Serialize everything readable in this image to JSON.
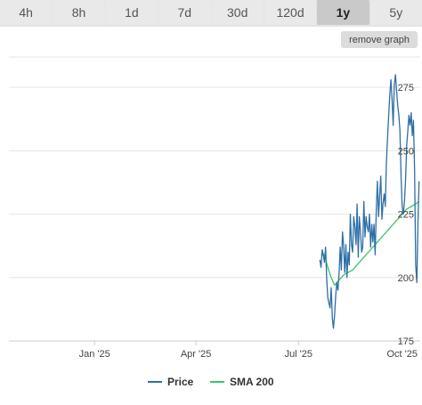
{
  "tabs": [
    {
      "label": "4h",
      "active": false
    },
    {
      "label": "8h",
      "active": false
    },
    {
      "label": "1d",
      "active": false
    },
    {
      "label": "7d",
      "active": false
    },
    {
      "label": "30d",
      "active": false
    },
    {
      "label": "120d",
      "active": false
    },
    {
      "label": "1y",
      "active": true
    },
    {
      "label": "5y",
      "active": false
    }
  ],
  "remove_graph_label": "remove graph",
  "colors": {
    "price": "#2e6ea6",
    "sma": "#3cc46a",
    "grid": "#e6e6e6",
    "axis": "#cccccc"
  },
  "chart_data": {
    "type": "line",
    "title": "",
    "xlabel": "",
    "ylabel": "",
    "xlim": [
      "2024-10-17",
      "2025-10-17"
    ],
    "ylim": [
      175,
      287
    ],
    "yticks": [
      175,
      200,
      225,
      250,
      275
    ],
    "xticks": [
      {
        "date": "2025-01-01",
        "label": "Jan '25"
      },
      {
        "date": "2025-04-01",
        "label": "Apr '25"
      },
      {
        "date": "2025-07-01",
        "label": "Jul '25"
      },
      {
        "date": "2025-10-01",
        "label": "Oct '25"
      }
    ],
    "grid": true,
    "legend": "bottom",
    "series": [
      {
        "name": "Price",
        "points": [
          [
            "2025-07-20",
            207
          ],
          [
            "2025-07-21",
            204
          ],
          [
            "2025-07-22",
            211
          ],
          [
            "2025-07-23",
            209
          ],
          [
            "2025-07-24",
            206
          ],
          [
            "2025-07-25",
            212
          ],
          [
            "2025-07-26",
            200
          ],
          [
            "2025-07-27",
            192
          ],
          [
            "2025-07-28",
            190
          ],
          [
            "2025-07-29",
            188
          ],
          [
            "2025-07-30",
            196
          ],
          [
            "2025-07-31",
            184
          ],
          [
            "2025-08-01",
            180
          ],
          [
            "2025-08-02",
            185
          ],
          [
            "2025-08-03",
            193
          ],
          [
            "2025-08-04",
            198
          ],
          [
            "2025-08-05",
            195
          ],
          [
            "2025-08-06",
            202
          ],
          [
            "2025-08-07",
            212
          ],
          [
            "2025-08-08",
            203
          ],
          [
            "2025-08-09",
            218
          ],
          [
            "2025-08-10",
            213
          ],
          [
            "2025-08-11",
            202
          ],
          [
            "2025-08-12",
            213
          ],
          [
            "2025-08-13",
            200
          ],
          [
            "2025-08-14",
            210
          ],
          [
            "2025-08-15",
            205
          ],
          [
            "2025-08-16",
            225
          ],
          [
            "2025-08-17",
            213
          ],
          [
            "2025-08-18",
            210
          ],
          [
            "2025-08-19",
            224
          ],
          [
            "2025-08-20",
            220
          ],
          [
            "2025-08-21",
            213
          ],
          [
            "2025-08-22",
            229
          ],
          [
            "2025-08-23",
            208
          ],
          [
            "2025-08-24",
            224
          ],
          [
            "2025-08-25",
            218
          ],
          [
            "2025-08-26",
            210
          ],
          [
            "2025-08-27",
            212
          ],
          [
            "2025-08-28",
            230
          ],
          [
            "2025-08-29",
            216
          ],
          [
            "2025-08-30",
            224
          ],
          [
            "2025-08-31",
            220
          ],
          [
            "2025-09-01",
            218
          ],
          [
            "2025-09-02",
            225
          ],
          [
            "2025-09-03",
            212
          ],
          [
            "2025-09-04",
            221
          ],
          [
            "2025-09-05",
            214
          ],
          [
            "2025-09-06",
            221
          ],
          [
            "2025-09-07",
            209
          ],
          [
            "2025-09-08",
            226
          ],
          [
            "2025-09-09",
            238
          ],
          [
            "2025-09-10",
            224
          ],
          [
            "2025-09-11",
            232
          ],
          [
            "2025-09-12",
            240
          ],
          [
            "2025-09-13",
            223
          ],
          [
            "2025-09-14",
            229
          ],
          [
            "2025-09-15",
            233
          ],
          [
            "2025-09-16",
            228
          ],
          [
            "2025-09-17",
            245
          ],
          [
            "2025-09-18",
            255
          ],
          [
            "2025-09-19",
            264
          ],
          [
            "2025-09-20",
            272
          ],
          [
            "2025-09-21",
            278
          ],
          [
            "2025-09-22",
            270
          ],
          [
            "2025-09-23",
            260
          ],
          [
            "2025-09-24",
            276
          ],
          [
            "2025-09-25",
            280
          ],
          [
            "2025-09-26",
            274
          ],
          [
            "2025-09-27",
            268
          ],
          [
            "2025-09-28",
            264
          ],
          [
            "2025-09-29",
            258
          ],
          [
            "2025-09-30",
            240
          ],
          [
            "2025-10-01",
            228
          ],
          [
            "2025-10-02",
            225
          ],
          [
            "2025-10-03",
            230
          ],
          [
            "2025-10-04",
            238
          ],
          [
            "2025-10-05",
            252
          ],
          [
            "2025-10-06",
            258
          ],
          [
            "2025-10-07",
            264
          ],
          [
            "2025-10-08",
            260
          ],
          [
            "2025-10-09",
            265
          ],
          [
            "2025-10-10",
            256
          ],
          [
            "2025-10-11",
            262
          ],
          [
            "2025-10-12",
            242
          ],
          [
            "2025-10-13",
            205
          ],
          [
            "2025-10-14",
            198
          ],
          [
            "2025-10-15",
            222
          ],
          [
            "2025-10-16",
            238
          ]
        ]
      },
      {
        "name": "SMA 200",
        "points": [
          [
            "2025-07-21",
            209
          ],
          [
            "2025-07-24",
            209
          ],
          [
            "2025-07-27",
            204
          ],
          [
            "2025-07-30",
            200
          ],
          [
            "2025-08-02",
            197
          ],
          [
            "2025-08-06",
            199
          ],
          [
            "2025-08-10",
            201
          ],
          [
            "2025-08-14",
            202
          ],
          [
            "2025-08-18",
            203
          ],
          [
            "2025-08-22",
            205
          ],
          [
            "2025-08-26",
            207
          ],
          [
            "2025-08-30",
            209
          ],
          [
            "2025-09-03",
            211
          ],
          [
            "2025-09-07",
            213
          ],
          [
            "2025-09-11",
            215
          ],
          [
            "2025-09-15",
            217
          ],
          [
            "2025-09-19",
            219
          ],
          [
            "2025-09-23",
            221
          ],
          [
            "2025-09-27",
            223
          ],
          [
            "2025-10-01",
            225
          ],
          [
            "2025-10-05",
            227
          ],
          [
            "2025-10-09",
            228
          ],
          [
            "2025-10-13",
            229
          ],
          [
            "2025-10-16",
            230
          ]
        ]
      }
    ]
  }
}
